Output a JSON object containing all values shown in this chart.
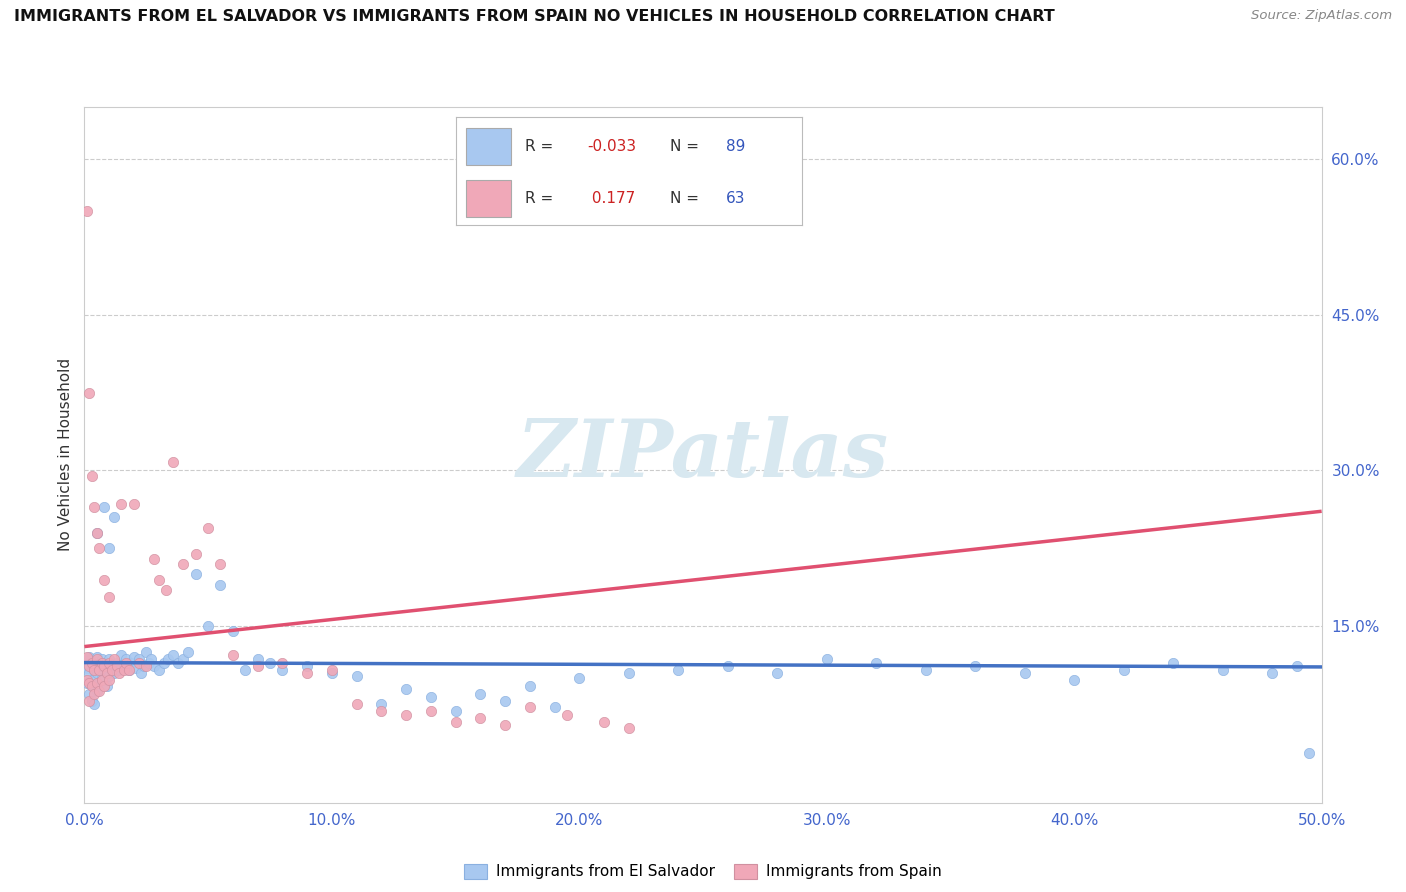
{
  "title": "IMMIGRANTS FROM EL SALVADOR VS IMMIGRANTS FROM SPAIN NO VEHICLES IN HOUSEHOLD CORRELATION CHART",
  "source": "Source: ZipAtlas.com",
  "ylabel": "No Vehicles in Household",
  "xlim": [
    0.0,
    0.5
  ],
  "ylim": [
    -0.02,
    0.65
  ],
  "yticks_right": [
    0.15,
    0.3,
    0.45,
    0.6
  ],
  "ytick_labels_right": [
    "15.0%",
    "30.0%",
    "45.0%",
    "60.0%"
  ],
  "xticks": [
    0.0,
    0.1,
    0.2,
    0.3,
    0.4,
    0.5
  ],
  "xtick_labels": [
    "0.0%",
    "10.0%",
    "20.0%",
    "30.0%",
    "40.0%",
    "50.0%"
  ],
  "el_salvador_R": -0.033,
  "el_salvador_N": 89,
  "spain_R": 0.177,
  "spain_N": 63,
  "el_salvador_color": "#a8c8f0",
  "spain_color": "#f0a8b8",
  "el_salvador_line_color": "#4472c4",
  "spain_line_color": "#e05070",
  "spain_dash_color": "#e09090",
  "watermark_text": "ZIPatlas",
  "legend_entries": [
    "Immigrants from El Salvador",
    "Immigrants from Spain"
  ],
  "el_salvador_x": [
    0.001,
    0.001,
    0.002,
    0.002,
    0.002,
    0.003,
    0.003,
    0.003,
    0.004,
    0.004,
    0.004,
    0.005,
    0.005,
    0.005,
    0.006,
    0.006,
    0.007,
    0.007,
    0.008,
    0.008,
    0.009,
    0.009,
    0.01,
    0.01,
    0.011,
    0.012,
    0.013,
    0.014,
    0.015,
    0.016,
    0.017,
    0.018,
    0.019,
    0.02,
    0.021,
    0.022,
    0.023,
    0.024,
    0.025,
    0.026,
    0.027,
    0.028,
    0.03,
    0.032,
    0.034,
    0.036,
    0.038,
    0.04,
    0.042,
    0.045,
    0.05,
    0.055,
    0.06,
    0.065,
    0.07,
    0.075,
    0.08,
    0.09,
    0.1,
    0.11,
    0.12,
    0.13,
    0.14,
    0.15,
    0.16,
    0.17,
    0.18,
    0.19,
    0.2,
    0.22,
    0.24,
    0.26,
    0.28,
    0.3,
    0.32,
    0.34,
    0.36,
    0.38,
    0.4,
    0.42,
    0.44,
    0.46,
    0.48,
    0.49,
    0.495,
    0.005,
    0.008,
    0.01,
    0.012
  ],
  "el_salvador_y": [
    0.11,
    0.095,
    0.12,
    0.105,
    0.085,
    0.115,
    0.098,
    0.078,
    0.108,
    0.092,
    0.075,
    0.12,
    0.105,
    0.088,
    0.112,
    0.095,
    0.118,
    0.1,
    0.115,
    0.098,
    0.108,
    0.092,
    0.118,
    0.102,
    0.112,
    0.105,
    0.115,
    0.108,
    0.122,
    0.112,
    0.118,
    0.108,
    0.115,
    0.12,
    0.11,
    0.118,
    0.105,
    0.112,
    0.125,
    0.115,
    0.118,
    0.112,
    0.108,
    0.115,
    0.118,
    0.122,
    0.115,
    0.118,
    0.125,
    0.2,
    0.15,
    0.19,
    0.145,
    0.108,
    0.118,
    0.115,
    0.108,
    0.112,
    0.105,
    0.102,
    0.075,
    0.09,
    0.082,
    0.068,
    0.085,
    0.078,
    0.092,
    0.072,
    0.1,
    0.105,
    0.108,
    0.112,
    0.105,
    0.118,
    0.115,
    0.108,
    0.112,
    0.105,
    0.098,
    0.108,
    0.115,
    0.108,
    0.105,
    0.112,
    0.028,
    0.24,
    0.265,
    0.225,
    0.255
  ],
  "spain_x": [
    0.001,
    0.001,
    0.002,
    0.002,
    0.002,
    0.003,
    0.003,
    0.004,
    0.004,
    0.005,
    0.005,
    0.006,
    0.006,
    0.007,
    0.007,
    0.008,
    0.008,
    0.009,
    0.01,
    0.01,
    0.011,
    0.012,
    0.013,
    0.014,
    0.015,
    0.016,
    0.017,
    0.018,
    0.02,
    0.022,
    0.025,
    0.028,
    0.03,
    0.033,
    0.036,
    0.04,
    0.045,
    0.05,
    0.055,
    0.06,
    0.07,
    0.08,
    0.09,
    0.1,
    0.11,
    0.12,
    0.13,
    0.14,
    0.15,
    0.16,
    0.17,
    0.18,
    0.195,
    0.21,
    0.22,
    0.001,
    0.002,
    0.003,
    0.004,
    0.005,
    0.006,
    0.008,
    0.01
  ],
  "spain_y": [
    0.12,
    0.098,
    0.112,
    0.095,
    0.078,
    0.115,
    0.092,
    0.108,
    0.085,
    0.118,
    0.095,
    0.108,
    0.088,
    0.115,
    0.098,
    0.112,
    0.092,
    0.105,
    0.115,
    0.098,
    0.108,
    0.118,
    0.112,
    0.105,
    0.268,
    0.108,
    0.115,
    0.108,
    0.268,
    0.115,
    0.112,
    0.215,
    0.195,
    0.185,
    0.308,
    0.21,
    0.22,
    0.245,
    0.21,
    0.122,
    0.112,
    0.115,
    0.105,
    0.108,
    0.075,
    0.068,
    0.065,
    0.068,
    0.058,
    0.062,
    0.055,
    0.072,
    0.065,
    0.058,
    0.052,
    0.55,
    0.375,
    0.295,
    0.265,
    0.24,
    0.225,
    0.195,
    0.178
  ]
}
